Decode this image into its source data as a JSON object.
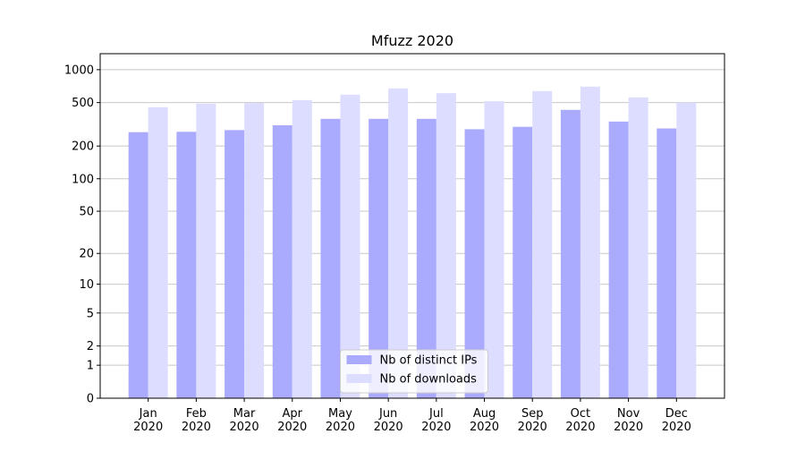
{
  "chart_data": {
    "type": "bar",
    "title": "Mfuzz 2020",
    "categories": [
      "Jan\n2020",
      "Feb\n2020",
      "Mar\n2020",
      "Apr\n2020",
      "May\n2020",
      "Jun\n2020",
      "Jul\n2020",
      "Aug\n2020",
      "Sep\n2020",
      "Oct\n2020",
      "Nov\n2020",
      "Dec\n2020"
    ],
    "series": [
      {
        "name": "Nb of distinct IPs",
        "color": "#aaaaff",
        "values": [
          268,
          270,
          280,
          310,
          355,
          355,
          355,
          285,
          300,
          429,
          335,
          290
        ]
      },
      {
        "name": "Nb of downloads",
        "color": "#ddddff",
        "values": [
          454,
          489,
          495,
          527,
          591,
          674,
          610,
          515,
          637,
          700,
          558,
          500
        ]
      }
    ],
    "yscale": "log1p",
    "ylim": [
      0,
      1400
    ],
    "yticks": [
      0,
      1,
      2,
      5,
      10,
      20,
      50,
      100,
      200,
      500,
      1000
    ],
    "grid": true,
    "legend": "lower center"
  }
}
